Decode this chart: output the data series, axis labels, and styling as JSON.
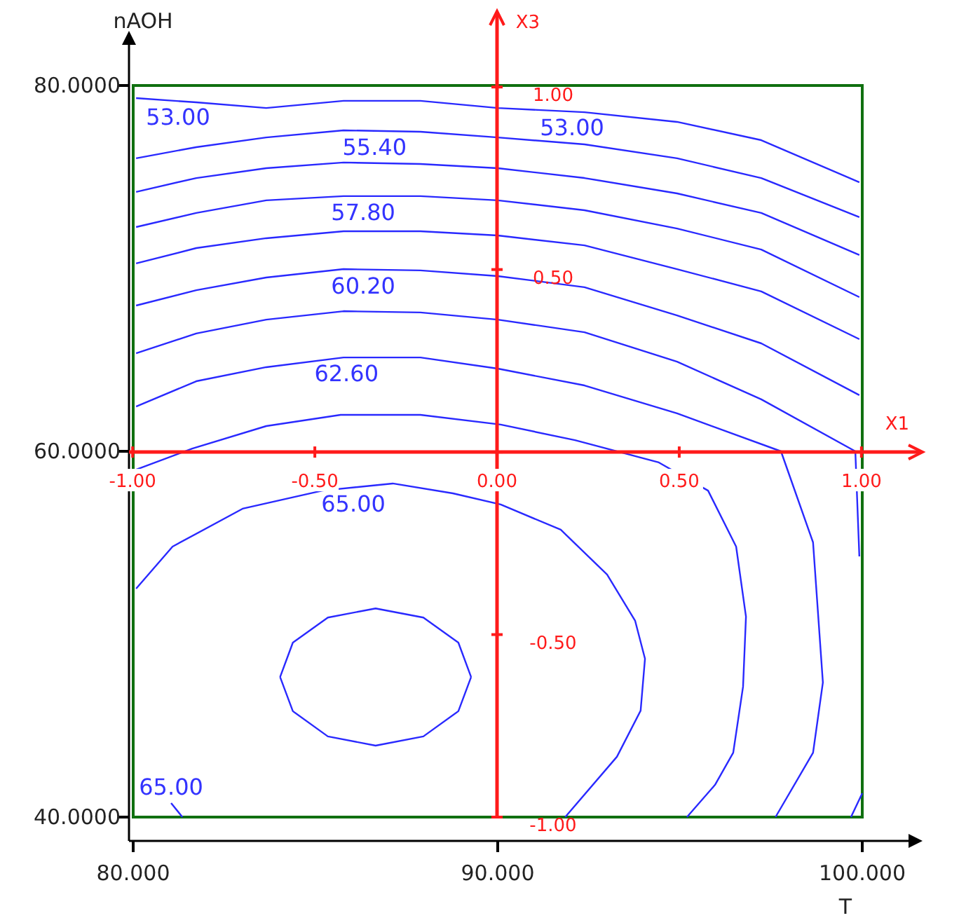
{
  "chart_data": {
    "type": "line",
    "xlabel": "T",
    "ylabel": "nAOH",
    "x2label": "X1",
    "y2label": "X3",
    "xlim": [
      80,
      100
    ],
    "xticks": [
      {
        "value": 80,
        "label": "80.000"
      },
      {
        "value": 90,
        "label": "90.000"
      },
      {
        "value": 100,
        "label": "100.000"
      }
    ],
    "ylim": [
      40,
      80
    ],
    "yticks": [
      {
        "value": 40,
        "label": "40.0000"
      },
      {
        "value": 60,
        "label": "60.0000"
      },
      {
        "value": 80,
        "label": "80.0000"
      }
    ],
    "x2lim": [
      -1.01,
      1.16
    ],
    "x2ticks": [
      {
        "value": -1,
        "label": "-1.00"
      },
      {
        "value": -0.5,
        "label": "-0.50"
      },
      {
        "value": 0,
        "label": "0.00"
      },
      {
        "value": 0.5,
        "label": "0.50"
      },
      {
        "value": 1,
        "label": "1.00"
      }
    ],
    "y2lim": [
      -1,
      1.2
    ],
    "y2ticks": [
      {
        "value": -1,
        "label": "-1.00"
      },
      {
        "value": -0.5,
        "label": "-0.50"
      },
      {
        "value": 0,
        "label": null
      },
      {
        "value": 0.5,
        "label": "0.50"
      },
      {
        "value": 1,
        "label": "1.00"
      }
    ],
    "series": [
      {
        "color": "#2929ff",
        "x": [
          80.08,
          81.73,
          83.65,
          85.77,
          87.88,
          90.0,
          92.38,
          94.92,
          97.23,
          99.92
        ],
        "values": [
          79.31,
          79.08,
          78.77,
          79.16,
          79.16,
          78.77,
          78.54,
          78.01,
          77.01,
          74.71
        ]
      },
      {
        "color": "#2929ff",
        "x": [
          80.08,
          81.73,
          83.65,
          85.77,
          87.88,
          90.0,
          92.38,
          94.92,
          97.23,
          99.92
        ],
        "values": [
          76.02,
          76.63,
          77.16,
          77.55,
          77.47,
          77.16,
          76.78,
          76.02,
          74.94,
          72.8
        ]
      },
      {
        "color": "#2929ff",
        "x": [
          80.08,
          81.73,
          83.65,
          85.77,
          87.88,
          90.0,
          92.38,
          94.92,
          97.23,
          99.92
        ],
        "values": [
          74.18,
          74.94,
          75.48,
          75.79,
          75.71,
          75.48,
          74.94,
          74.1,
          73.03,
          70.73
        ]
      },
      {
        "color": "#2929ff",
        "x": [
          80.08,
          81.73,
          83.65,
          85.77,
          87.88,
          90.0,
          92.38,
          94.92,
          97.23,
          99.92
        ],
        "values": [
          72.26,
          73.03,
          73.72,
          73.95,
          73.95,
          73.72,
          73.18,
          72.18,
          71.03,
          68.43
        ]
      },
      {
        "color": "#2929ff",
        "x": [
          80.08,
          81.73,
          83.65,
          85.77,
          87.88,
          90.0,
          92.38,
          94.92,
          97.23,
          99.92
        ],
        "values": [
          70.27,
          71.11,
          71.65,
          72.03,
          72.03,
          71.8,
          71.26,
          69.96,
          68.74,
          66.13
        ]
      },
      {
        "color": "#2929ff",
        "x": [
          80.08,
          81.73,
          83.65,
          85.77,
          87.88,
          90.0,
          92.38,
          94.92,
          97.23,
          99.92
        ],
        "values": [
          67.97,
          68.81,
          69.5,
          69.96,
          69.89,
          69.58,
          68.97,
          67.43,
          65.9,
          63.07
        ]
      },
      {
        "color": "#2929ff",
        "x": [
          80.08,
          81.73,
          83.65,
          85.77,
          87.88,
          90.0,
          92.38,
          94.92,
          97.23,
          99.81,
          99.92
        ],
        "values": [
          65.36,
          66.44,
          67.2,
          67.66,
          67.59,
          67.2,
          66.51,
          64.9,
          62.84,
          60.0,
          54.25
        ]
      },
      {
        "color": "#2929ff",
        "x": [
          99.69,
          100
        ],
        "values": [
          40,
          41.3
        ]
      },
      {
        "color": "#2929ff",
        "x": [
          80.08,
          81.73,
          83.65,
          85.77,
          87.88,
          90.0,
          92.38,
          94.92,
          97.77,
          98.65,
          98.92,
          98.65,
          97.62
        ],
        "values": [
          62.45,
          63.83,
          64.6,
          65.13,
          65.13,
          64.52,
          63.6,
          62.07,
          60.0,
          55.02,
          47.36,
          43.52,
          40
        ]
      },
      {
        "color": "#2929ff",
        "x": [
          80.08,
          81.62,
          83.65,
          85.69,
          87.88,
          90.08,
          92.12,
          94.42,
          95.77,
          96.54,
          96.81,
          96.73,
          96.46,
          95.96,
          95.19
        ],
        "values": [
          59.0,
          60.15,
          61.38,
          61.99,
          61.99,
          61.46,
          60.61,
          59.39,
          57.85,
          54.79,
          50.96,
          47.13,
          43.52,
          41.76,
          40
        ]
      },
      {
        "color": "#2929ff",
        "x": [
          80.08,
          81.08,
          83.0,
          85.19,
          87.12,
          88.77,
          90.08,
          91.73,
          93.0,
          93.77,
          94.04,
          93.92,
          93.27,
          91.85
        ],
        "values": [
          52.49,
          54.79,
          56.86,
          57.85,
          58.24,
          57.7,
          57.09,
          55.71,
          53.26,
          50.73,
          48.66,
          45.82,
          43.3,
          40
        ]
      },
      {
        "color": "#2929ff",
        "x": [
          81.04,
          81.35
        ],
        "values": [
          40.77,
          40
        ]
      },
      {
        "color": "#2929ff",
        "x": [
          84.03,
          84.38,
          85.34,
          86.65,
          87.96,
          88.92,
          89.27
        ],
        "values": [
          47.66,
          49.54,
          50.91,
          51.41,
          50.91,
          49.54,
          47.66
        ]
      },
      {
        "color": "#2929ff",
        "x": [
          84.03,
          84.38,
          85.34,
          86.65,
          87.96,
          88.92,
          89.27
        ],
        "values": [
          47.66,
          45.79,
          44.41,
          43.91,
          44.41,
          45.79,
          47.66
        ]
      }
    ],
    "annotations": [
      {
        "text": "53.00",
        "x": 81.23,
        "y": 79.15
      },
      {
        "text": "53.00",
        "x": 92.04,
        "y": 78.57
      },
      {
        "text": "55.40",
        "x": 86.62,
        "y": 77.52
      },
      {
        "text": "57.80",
        "x": 86.31,
        "y": 73.95
      },
      {
        "text": "60.20",
        "x": 86.31,
        "y": 69.94
      },
      {
        "text": "62.60",
        "x": 85.85,
        "y": 65.13
      },
      {
        "text": "65.00",
        "x": 86.04,
        "y": 58.02
      },
      {
        "text": "65.00",
        "x": 81.04,
        "y": 40.77
      }
    ]
  }
}
